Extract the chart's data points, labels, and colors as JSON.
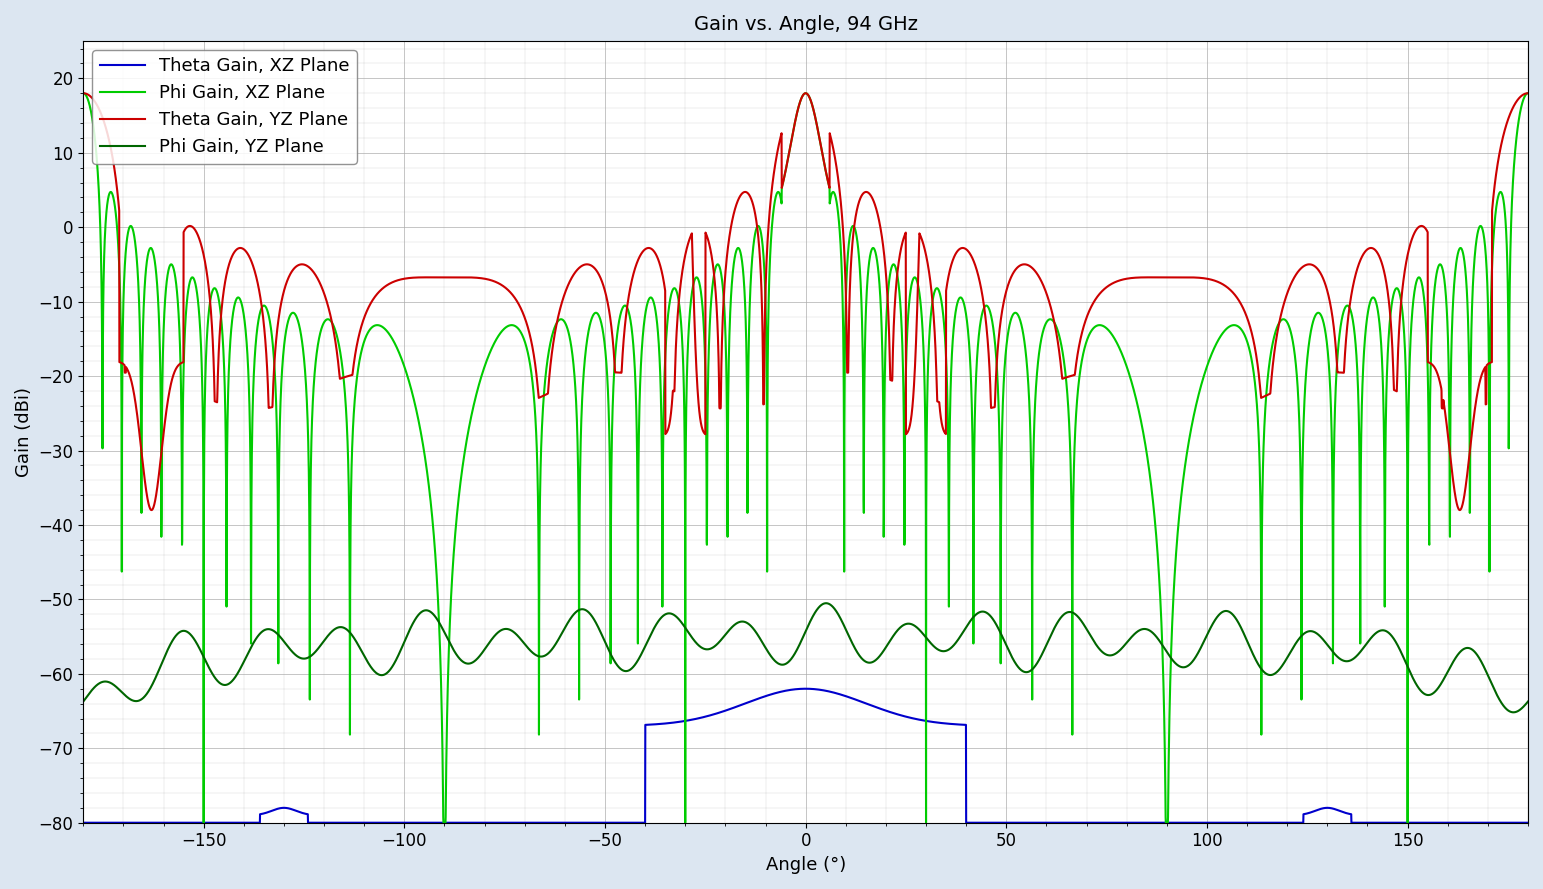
{
  "title": "Gain vs. Angle, 94 GHz",
  "xlabel": "Angle (°)",
  "ylabel": "Gain (dBi)",
  "xlim": [
    -180,
    180
  ],
  "ylim": [
    -80,
    25
  ],
  "yticks": [
    -80,
    -70,
    -60,
    -50,
    -40,
    -30,
    -20,
    -10,
    0,
    10,
    20
  ],
  "xticks": [
    -150,
    -100,
    -50,
    0,
    50,
    100,
    150
  ],
  "legend_labels": [
    "Theta Gain, XZ Plane",
    "Phi Gain, XZ Plane",
    "Theta Gain, YZ Plane",
    "Phi Gain, YZ Plane"
  ],
  "line_colors": [
    "#0000cc",
    "#00cc00",
    "#cc0000",
    "#006600"
  ],
  "background_color": "#dce6f1",
  "plot_bg_color": "#ffffff",
  "grid_color": "#aaaaaa",
  "title_fontsize": 14,
  "axis_fontsize": 13,
  "legend_fontsize": 13,
  "tick_fontsize": 12,
  "line_width": 1.5
}
